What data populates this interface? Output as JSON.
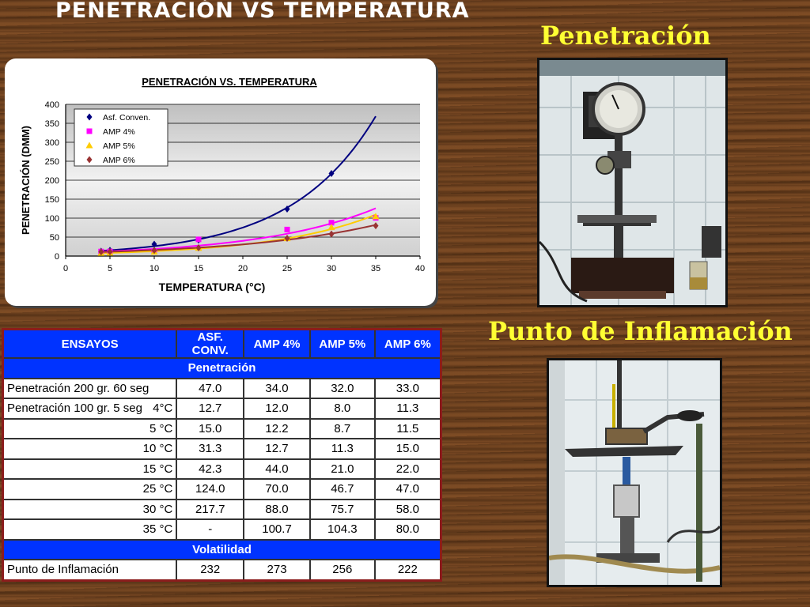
{
  "slide": {
    "title": "PENETRACIÓN  VS  TEMPERATURA",
    "photo1_title": "Penetración",
    "photo2_title": "Punto de Inflamación"
  },
  "chart_data": {
    "type": "scatter",
    "title": "PENETRACIÓN VS. TEMPERATURA",
    "xlabel": "TEMPERATURA (°C)",
    "ylabel": "PENETRACIÓN (DMM)",
    "xlim": [
      0,
      40
    ],
    "ylim": [
      0,
      400
    ],
    "xticks": [
      0,
      5,
      10,
      15,
      20,
      25,
      30,
      35,
      40
    ],
    "yticks": [
      0,
      50,
      100,
      150,
      200,
      250,
      300,
      350,
      400
    ],
    "grid": true,
    "legend_position": "top-left",
    "trendlines": "exponential",
    "series": [
      {
        "name": "Asf. Conven.",
        "marker": "diamond",
        "color": "#000080",
        "x": [
          4,
          5,
          10,
          15,
          25,
          30
        ],
        "y": [
          12.7,
          15.0,
          31.3,
          42.3,
          124.0,
          217.7
        ]
      },
      {
        "name": "AMP 4%",
        "marker": "square",
        "color": "#ff00ff",
        "x": [
          4,
          5,
          10,
          15,
          25,
          30,
          35
        ],
        "y": [
          12.0,
          12.2,
          12.7,
          44.0,
          70.0,
          88.0,
          100.7
        ]
      },
      {
        "name": "AMP 5%",
        "marker": "triangle",
        "color": "#ffcc00",
        "x": [
          4,
          5,
          10,
          15,
          25,
          30,
          35
        ],
        "y": [
          8.0,
          8.7,
          11.3,
          21.0,
          46.7,
          75.7,
          104.3
        ]
      },
      {
        "name": "AMP 6%",
        "marker": "diamond",
        "color": "#993333",
        "x": [
          4,
          5,
          10,
          15,
          25,
          30,
          35
        ],
        "y": [
          11.3,
          11.5,
          15.0,
          22.0,
          47.0,
          58.0,
          80.0
        ]
      }
    ]
  },
  "table": {
    "headers": [
      "ENSAYOS",
      "ASF. CONV.",
      "AMP 4%",
      "AMP 5%",
      "AMP 6%"
    ],
    "section1": "Penetración",
    "row_pen200": {
      "label": "Penetración 200 gr. 60 seg",
      "values": [
        "47.0",
        "34.0",
        "32.0",
        "33.0"
      ]
    },
    "pen100_label": "Penetración 100 gr. 5 seg",
    "temp_rows": [
      {
        "temp": "4°C",
        "values": [
          "12.7",
          "12.0",
          "8.0",
          "11.3"
        ]
      },
      {
        "temp": "5 °C",
        "values": [
          "15.0",
          "12.2",
          "8.7",
          "11.5"
        ]
      },
      {
        "temp": "10 °C",
        "values": [
          "31.3",
          "12.7",
          "11.3",
          "15.0"
        ]
      },
      {
        "temp": "15 °C",
        "values": [
          "42.3",
          "44.0",
          "21.0",
          "22.0"
        ]
      },
      {
        "temp": "25 °C",
        "values": [
          "124.0",
          "70.0",
          "46.7",
          "47.0"
        ]
      },
      {
        "temp": "30 °C",
        "values": [
          "217.7",
          "88.0",
          "75.7",
          "58.0"
        ]
      },
      {
        "temp": "35 °C",
        "values": [
          "-",
          "100.7",
          "104.3",
          "80.0"
        ]
      }
    ],
    "section2": "Volatilidad",
    "row_flash": {
      "label": "Punto de Inflamación",
      "values": [
        "232",
        "273",
        "256",
        "222"
      ]
    }
  }
}
